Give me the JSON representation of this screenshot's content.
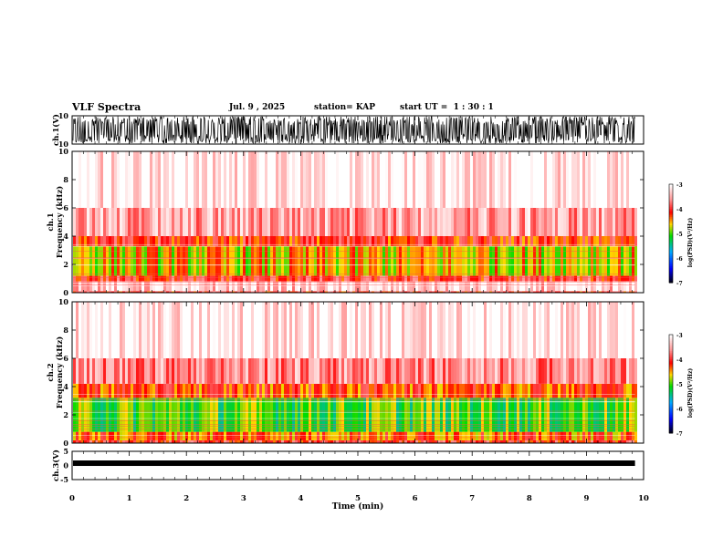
{
  "header": {
    "title": "VLF Spectra",
    "date": "Jul. 9 , 2025",
    "station": "station= KAP",
    "start_ut": "start UT =  1 : 30 : 1"
  },
  "colorbar": {
    "label": "log(PSD)(V²/Hz)",
    "ticks": [
      "-3",
      "-4",
      "-5",
      "-6",
      "-7"
    ],
    "stops": [
      "#ffffff",
      "#ff9a9a",
      "#ff0000",
      "#ffd800",
      "#00e000",
      "#00b4ff",
      "#0000ff",
      "#000000"
    ]
  },
  "chart_data": [
    {
      "type": "line",
      "name_label": "ch.1(V)",
      "ylabel": "ch.1(V)",
      "y_ticks": [
        "10",
        "-10"
      ],
      "ylim": [
        -10,
        10
      ],
      "x_range_min": [
        0,
        9.85
      ],
      "description_values": "dense waveform spanning roughly -8 to +10 V for the full interval"
    },
    {
      "type": "heatmap",
      "ylabel": "ch.1\nFrequency (kHz)",
      "ylabel_lines": [
        "ch.1",
        "Frequency (kHz)"
      ],
      "y_ticks": [
        "0",
        "2",
        "4",
        "6",
        "8",
        "10"
      ],
      "ylim": [
        0,
        10
      ],
      "xlim": [
        0,
        10
      ],
      "x_data_end": 9.85,
      "bands_khz": [
        {
          "from": 0.0,
          "to": 0.1,
          "log_psd": -4.0
        },
        {
          "from": 0.1,
          "to": 0.8,
          "log_psd": -3.3
        },
        {
          "from": 0.8,
          "to": 1.2,
          "log_psd": -4.0
        },
        {
          "from": 1.2,
          "to": 3.3,
          "log_psd": -4.6
        },
        {
          "from": 3.3,
          "to": 4.0,
          "log_psd": -4.1
        },
        {
          "from": 4.0,
          "to": 6.0,
          "log_psd": -3.5
        },
        {
          "from": 6.0,
          "to": 10.0,
          "log_psd": -3.1
        }
      ]
    },
    {
      "type": "heatmap",
      "ylabel": "ch.2\nFrequency (kHz)",
      "ylabel_lines": [
        "ch.2",
        "Frequency (kHz)"
      ],
      "y_ticks": [
        "0",
        "2",
        "4",
        "6",
        "8",
        "10"
      ],
      "ylim": [
        0,
        10
      ],
      "xlim": [
        0,
        10
      ],
      "x_data_end": 9.85,
      "bands_khz": [
        {
          "from": 0.0,
          "to": 0.2,
          "log_psd": -4.0
        },
        {
          "from": 0.2,
          "to": 0.8,
          "log_psd": -4.3
        },
        {
          "from": 0.8,
          "to": 3.2,
          "log_psd": -5.0
        },
        {
          "from": 3.2,
          "to": 4.2,
          "log_psd": -4.2
        },
        {
          "from": 4.2,
          "to": 6.0,
          "log_psd": -3.6
        },
        {
          "from": 6.0,
          "to": 10.0,
          "log_psd": -3.1
        }
      ]
    },
    {
      "type": "line",
      "ylabel": "ch.3(V)",
      "y_ticks": [
        "5",
        "0",
        "-5"
      ],
      "ylim": [
        -5,
        5
      ],
      "value_level_v": 0.8,
      "x_range_min": [
        0,
        9.85
      ]
    }
  ],
  "x_axis": {
    "label": "Time (min)",
    "ticks": [
      "0",
      "1",
      "2",
      "3",
      "4",
      "5",
      "6",
      "7",
      "8",
      "9",
      "10"
    ],
    "range": [
      0,
      10
    ]
  }
}
